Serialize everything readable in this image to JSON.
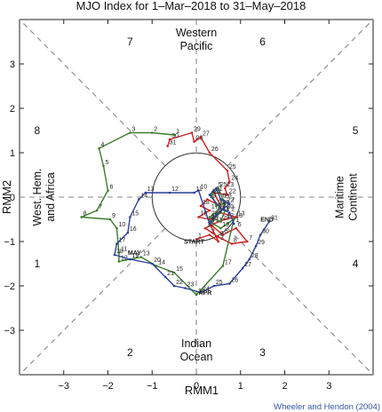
{
  "chart_data": {
    "type": "line",
    "title": "MJO Index for 1–Mar–2018 to 31–May–2018",
    "xlabel": "RMM1",
    "ylabel": "RMM2",
    "xlim": [
      -4,
      4
    ],
    "ylim": [
      -4,
      4
    ],
    "xticks": [
      -3,
      -2,
      -1,
      0,
      1,
      2,
      3
    ],
    "yticks": [
      -3,
      -2,
      -1,
      0,
      1,
      2,
      3
    ],
    "unit_circle_radius": 1,
    "phases": [
      {
        "label": "1",
        "x": -3.6,
        "y": -1.5
      },
      {
        "label": "2",
        "x": -1.5,
        "y": -3.5
      },
      {
        "label": "3",
        "x": 1.5,
        "y": -3.5
      },
      {
        "label": "4",
        "x": 3.6,
        "y": -1.5
      },
      {
        "label": "5",
        "x": 3.6,
        "y": 1.5
      },
      {
        "label": "6",
        "x": 1.5,
        "y": 3.5
      },
      {
        "label": "7",
        "x": -1.5,
        "y": 3.5
      },
      {
        "label": "8",
        "x": -3.6,
        "y": 1.5
      }
    ],
    "regions": [
      {
        "name": "top",
        "lines": [
          "Western",
          "Pacific"
        ]
      },
      {
        "name": "bottom",
        "lines": [
          "Indian",
          "Ocean"
        ]
      },
      {
        "name": "left",
        "lines": [
          "West. Hem.",
          "and Africa"
        ]
      },
      {
        "name": "right",
        "lines": [
          "Maritime",
          "Continent"
        ]
      }
    ],
    "annotations": [
      {
        "text": "START",
        "x": -0.05,
        "y": -1.05
      },
      {
        "text": "END",
        "x": 1.6,
        "y": -0.55
      },
      {
        "text": "APR",
        "x": 0.2,
        "y": -2.2
      },
      {
        "text": "MAY",
        "x": -1.4,
        "y": -1.3
      }
    ],
    "series": [
      {
        "color": "#d42020",
        "points": [
          {
            "x": 0.0,
            "y": -0.95,
            "label": "1"
          },
          {
            "x": 0.3,
            "y": -0.85,
            "label": "2"
          },
          {
            "x": 0.5,
            "y": -1.0,
            "label": "3"
          },
          {
            "x": 0.3,
            "y": -0.6,
            "label": "4"
          },
          {
            "x": 0.6,
            "y": -0.85,
            "label": "5"
          },
          {
            "x": 0.9,
            "y": -0.7,
            "label": "6"
          },
          {
            "x": 1.15,
            "y": -1.0,
            "label": "7"
          },
          {
            "x": 0.8,
            "y": -1.05,
            "label": "8"
          },
          {
            "x": 0.5,
            "y": -0.9,
            "label": "9"
          },
          {
            "x": 0.2,
            "y": -0.7,
            "label": "10"
          },
          {
            "x": 0.4,
            "y": -0.6,
            "label": "11"
          },
          {
            "x": 0.65,
            "y": -0.5,
            "label": "12"
          },
          {
            "x": 0.9,
            "y": -0.45,
            "label": "13"
          },
          {
            "x": 0.55,
            "y": -0.35,
            "label": "14"
          },
          {
            "x": 0.3,
            "y": -0.5,
            "label": "15"
          },
          {
            "x": 0.05,
            "y": -0.45,
            "label": "16"
          },
          {
            "x": 0.3,
            "y": -0.3,
            "label": "17"
          },
          {
            "x": 0.1,
            "y": -0.2,
            "label": "18"
          },
          {
            "x": 0.25,
            "y": -0.05,
            "label": "19"
          },
          {
            "x": 0.55,
            "y": -0.2,
            "label": "20"
          },
          {
            "x": 0.4,
            "y": 0.1,
            "label": "21"
          },
          {
            "x": 0.7,
            "y": 0.05,
            "label": "22"
          },
          {
            "x": 0.65,
            "y": 0.2,
            "label": "23"
          },
          {
            "x": 0.75,
            "y": 0.35,
            "label": "24"
          },
          {
            "x": 0.7,
            "y": 0.6,
            "label": "25"
          },
          {
            "x": 0.3,
            "y": 1.0,
            "label": "26"
          },
          {
            "x": 0.1,
            "y": 1.35,
            "label": "27"
          },
          {
            "x": -0.05,
            "y": 1.25,
            "label": "28"
          },
          {
            "x": -0.1,
            "y": 1.45,
            "label": "29"
          },
          {
            "x": -0.6,
            "y": 1.3,
            "label": "30"
          },
          {
            "x": -0.65,
            "y": 1.15,
            "label": "31"
          }
        ]
      },
      {
        "color": "#3a7d2a",
        "points": [
          {
            "x": -0.5,
            "y": 1.4,
            "label": "1"
          },
          {
            "x": -1.0,
            "y": 1.45,
            "label": "2"
          },
          {
            "x": -1.5,
            "y": 1.45,
            "label": "3"
          },
          {
            "x": -2.2,
            "y": 1.1,
            "label": "4"
          },
          {
            "x": -2.1,
            "y": 0.7,
            "label": "5"
          },
          {
            "x": -2.0,
            "y": 0.15,
            "label": "6"
          },
          {
            "x": -2.25,
            "y": -0.3,
            "label": "7"
          },
          {
            "x": -2.6,
            "y": -0.45,
            "label": "8"
          },
          {
            "x": -1.95,
            "y": -0.5,
            "label": "9"
          },
          {
            "x": -1.8,
            "y": -0.7,
            "label": "10"
          },
          {
            "x": -1.75,
            "y": -1.25,
            "label": "11"
          },
          {
            "x": -1.75,
            "y": -1.45,
            "label": "12"
          },
          {
            "x": -1.25,
            "y": -1.35,
            "label": "13"
          },
          {
            "x": -0.9,
            "y": -1.55,
            "label": "14"
          },
          {
            "x": -0.5,
            "y": -1.7,
            "label": "15"
          },
          {
            "x": 0.0,
            "y": -2.2,
            "label": "16"
          },
          {
            "x": 0.6,
            "y": -1.55,
            "label": "17"
          },
          {
            "x": 0.85,
            "y": -0.5,
            "label": "18"
          },
          {
            "x": 0.55,
            "y": -0.7,
            "label": "19"
          },
          {
            "x": 0.3,
            "y": -0.55,
            "label": "20"
          },
          {
            "x": 0.55,
            "y": -0.35,
            "label": "21"
          },
          {
            "x": 0.65,
            "y": -0.15,
            "label": "22"
          },
          {
            "x": 0.45,
            "y": -0.2,
            "label": "23"
          },
          {
            "x": 0.35,
            "y": 0.05,
            "label": "24"
          },
          {
            "x": 0.5,
            "y": 0.2,
            "label": "25"
          },
          {
            "x": 0.6,
            "y": -0.05,
            "label": "26"
          },
          {
            "x": 0.45,
            "y": -0.35,
            "label": "27"
          },
          {
            "x": 0.3,
            "y": -0.45,
            "label": "28"
          },
          {
            "x": 0.55,
            "y": -0.55,
            "label": "29"
          },
          {
            "x": 0.65,
            "y": -0.3,
            "label": "30"
          }
        ]
      },
      {
        "color": "#2a3f9a",
        "points": [
          {
            "x": 0.85,
            "y": -0.6,
            "label": "1"
          },
          {
            "x": 0.75,
            "y": -0.35,
            "label": "2"
          },
          {
            "x": 0.55,
            "y": -0.25,
            "label": "3"
          },
          {
            "x": 0.3,
            "y": 0.05,
            "label": "4"
          },
          {
            "x": 0.45,
            "y": 0.2,
            "label": "5"
          },
          {
            "x": 0.55,
            "y": -0.05,
            "label": "6"
          },
          {
            "x": 0.75,
            "y": -0.15,
            "label": "7"
          },
          {
            "x": 0.45,
            "y": -0.4,
            "label": "8"
          },
          {
            "x": 0.3,
            "y": -0.6,
            "label": "9"
          },
          {
            "x": 0.05,
            "y": 0.15,
            "label": "10"
          },
          {
            "x": -0.05,
            "y": 0.1,
            "label": "11"
          },
          {
            "x": -0.6,
            "y": 0.1,
            "label": "12"
          },
          {
            "x": -1.15,
            "y": 0.1,
            "label": "13"
          },
          {
            "x": -1.3,
            "y": -0.05,
            "label": "14"
          },
          {
            "x": -1.5,
            "y": -0.45,
            "label": "15"
          },
          {
            "x": -1.55,
            "y": -0.8,
            "label": "16"
          },
          {
            "x": -1.8,
            "y": -1.05,
            "label": "17"
          },
          {
            "x": -1.85,
            "y": -1.3,
            "label": "18"
          },
          {
            "x": -1.5,
            "y": -1.4,
            "label": "19"
          },
          {
            "x": -1.0,
            "y": -1.5,
            "label": "20"
          },
          {
            "x": -0.7,
            "y": -1.8,
            "label": "21"
          },
          {
            "x": -0.5,
            "y": -2.0,
            "label": "22"
          },
          {
            "x": -0.25,
            "y": -2.05,
            "label": "23"
          },
          {
            "x": 0.1,
            "y": -2.15,
            "label": "24"
          },
          {
            "x": 0.4,
            "y": -2.0,
            "label": "25"
          },
          {
            "x": 0.75,
            "y": -1.95,
            "label": "26"
          },
          {
            "x": 1.05,
            "y": -1.6,
            "label": "27"
          },
          {
            "x": 1.2,
            "y": -1.4,
            "label": "28"
          },
          {
            "x": 1.35,
            "y": -1.1,
            "label": "29"
          },
          {
            "x": 1.45,
            "y": -0.85,
            "label": "30"
          },
          {
            "x": 1.65,
            "y": -0.55,
            "label": "31"
          }
        ]
      }
    ]
  },
  "credit": "Wheeler and Hendon (2004)"
}
